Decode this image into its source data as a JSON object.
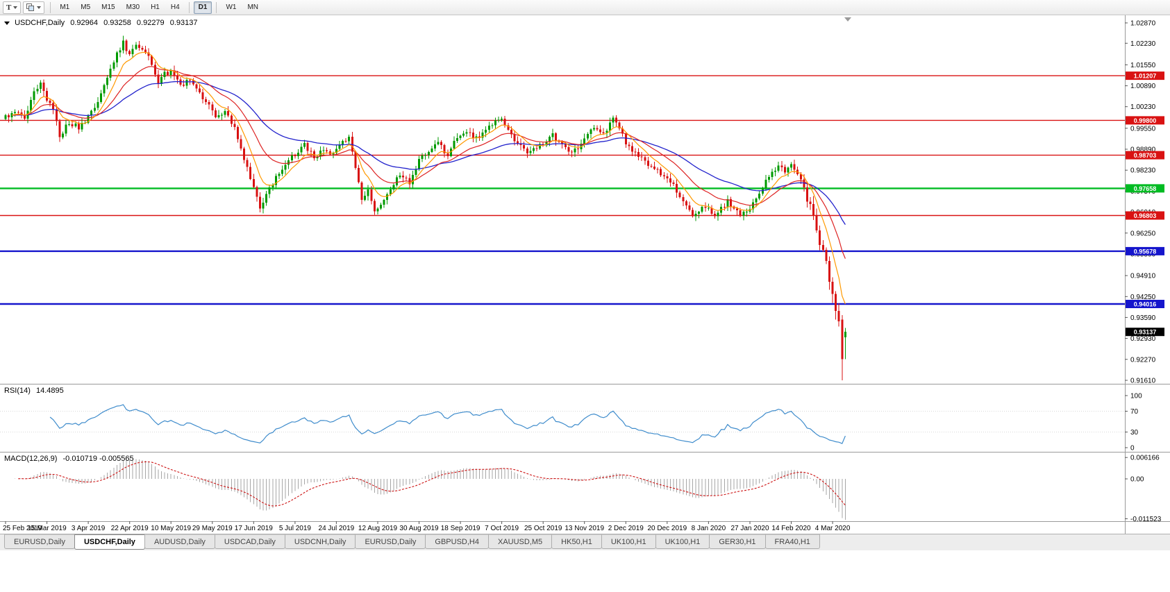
{
  "toolbar": {
    "pointer_button": {
      "label": "T"
    },
    "timeframes": [
      "M1",
      "M5",
      "M15",
      "M30",
      "H1",
      "H4",
      "D1",
      "W1",
      "MN"
    ],
    "active_timeframe": "D1"
  },
  "chart": {
    "header": {
      "symbol": "USDCHF,Daily",
      "open": "0.92964",
      "high": "0.93258",
      "low": "0.92279",
      "close": "0.93137"
    },
    "y_axis": [
      "1.02870",
      "1.02230",
      "1.01550",
      "1.00890",
      "1.00230",
      "0.99550",
      "0.98890",
      "0.98230",
      "0.97570",
      "0.96910",
      "0.96250",
      "0.95590",
      "0.94910",
      "0.94250",
      "0.93590",
      "0.92930",
      "0.92270",
      "0.91610"
    ],
    "x_axis": [
      "25 Feb 2019",
      "15 Mar 2019",
      "3 Apr 2019",
      "22 Apr 2019",
      "10 May 2019",
      "29 May 2019",
      "17 Jun 2019",
      "5 Jul 2019",
      "24 Jul 2019",
      "12 Aug 2019",
      "30 Aug 2019",
      "18 Sep 2019",
      "7 Oct 2019",
      "25 Oct 2019",
      "13 Nov 2019",
      "2 Dec 2019",
      "20 Dec 2019",
      "8 Jan 2020",
      "27 Jan 2020",
      "14 Feb 2020",
      "4 Mar 2020"
    ],
    "levels": [
      {
        "label": "1.01207",
        "price": 1.01207,
        "color": "#d91212",
        "width": 1.4
      },
      {
        "label": "0.99800",
        "price": 0.998,
        "color": "#d91212",
        "width": 1.4
      },
      {
        "label": "0.98703",
        "price": 0.98703,
        "color": "#d91212",
        "width": 1.4
      },
      {
        "label": "0.97658",
        "price": 0.97658,
        "color": "#00bb22",
        "width": 2.4
      },
      {
        "label": "0.96803",
        "price": 0.96803,
        "color": "#d91212",
        "width": 1.4
      },
      {
        "label": "0.95678",
        "price": 0.95678,
        "color": "#1515cc",
        "width": 2.4
      },
      {
        "label": "0.94016",
        "price": 0.94016,
        "color": "#1515cc",
        "width": 2.4
      }
    ],
    "current_price": {
      "label": "0.93137",
      "price": 0.93137,
      "color": "#000000"
    }
  },
  "rsi": {
    "name": "RSI(14)",
    "value": "14.4895",
    "scale": [
      "100",
      "70",
      "30",
      "0"
    ],
    "levels": [
      70,
      30
    ],
    "color": "#3f8ccc"
  },
  "macd": {
    "name": "MACD(12,26,9)",
    "value": "-0.010719 -0.005565",
    "scale": [
      "0.006166",
      "0.00",
      "-0.011523"
    ],
    "hist_color": "#a6a6a6",
    "signal_color": "#cc1111"
  },
  "tabs": {
    "active_index": 1,
    "items": [
      "EURUSD,Daily",
      "USDCHF,Daily",
      "AUDUSD,Daily",
      "USDCAD,Daily",
      "USDCNH,Daily",
      "EURUSD,Daily",
      "GBPUSD,H4",
      "XAUUSD,M5",
      "HK50,H1",
      "UK100,H1",
      "UK100,H1",
      "GER30,H1",
      "FRA40,H1"
    ]
  },
  "chart_data": {
    "type": "candlestick",
    "symbol": "USDCHF",
    "timeframe": "Daily",
    "bar_count": 265,
    "y_range": [
      0.9161,
      1.0287
    ],
    "colors": {
      "up": "#009a00",
      "down": "#d81111",
      "ma_fast": "#ff9900",
      "ma_mid": "#dd2222",
      "ma_slow": "#2222cc"
    },
    "close_anchors": [
      [
        0,
        0.999
      ],
      [
        3,
        1.0012
      ],
      [
        6,
        0.9985
      ],
      [
        9,
        1.0068
      ],
      [
        11,
        1.0095
      ],
      [
        13,
        1.0045
      ],
      [
        15,
        1.0018
      ],
      [
        17,
        0.9928
      ],
      [
        20,
        0.9975
      ],
      [
        23,
        0.9958
      ],
      [
        26,
        0.9988
      ],
      [
        29,
        1.0042
      ],
      [
        32,
        1.0122
      ],
      [
        35,
        1.0192
      ],
      [
        37,
        1.0226
      ],
      [
        39,
        1.0185
      ],
      [
        41,
        1.0216
      ],
      [
        44,
        1.0196
      ],
      [
        46,
        1.0158
      ],
      [
        48,
        1.0098
      ],
      [
        50,
        1.0126
      ],
      [
        52,
        1.0136
      ],
      [
        55,
        1.0092
      ],
      [
        58,
        1.0106
      ],
      [
        61,
        1.0062
      ],
      [
        64,
        1.003
      ],
      [
        66,
        0.9996
      ],
      [
        69,
        1.001
      ],
      [
        72,
        0.9958
      ],
      [
        75,
        0.9862
      ],
      [
        78,
        0.9772
      ],
      [
        80,
        0.9706
      ],
      [
        82,
        0.9746
      ],
      [
        85,
        0.9802
      ],
      [
        88,
        0.9846
      ],
      [
        91,
        0.9872
      ],
      [
        94,
        0.9906
      ],
      [
        97,
        0.9862
      ],
      [
        100,
        0.9892
      ],
      [
        103,
        0.9872
      ],
      [
        106,
        0.9916
      ],
      [
        108,
        0.9926
      ],
      [
        110,
        0.9832
      ],
      [
        112,
        0.9736
      ],
      [
        114,
        0.9762
      ],
      [
        116,
        0.9688
      ],
      [
        118,
        0.9722
      ],
      [
        121,
        0.9766
      ],
      [
        124,
        0.9806
      ],
      [
        127,
        0.9786
      ],
      [
        130,
        0.9852
      ],
      [
        133,
        0.9886
      ],
      [
        136,
        0.9906
      ],
      [
        139,
        0.9872
      ],
      [
        142,
        0.9926
      ],
      [
        145,
        0.995
      ],
      [
        148,
        0.9922
      ],
      [
        151,
        0.9956
      ],
      [
        154,
        0.9976
      ],
      [
        156,
        0.9986
      ],
      [
        158,
        0.9946
      ],
      [
        161,
        0.9906
      ],
      [
        164,
        0.9876
      ],
      [
        167,
        0.9896
      ],
      [
        169,
        0.9906
      ],
      [
        172,
        0.9932
      ],
      [
        175,
        0.9902
      ],
      [
        178,
        0.9876
      ],
      [
        180,
        0.9896
      ],
      [
        182,
        0.9926
      ],
      [
        185,
        0.9952
      ],
      [
        188,
        0.9932
      ],
      [
        191,
        0.9986
      ],
      [
        193,
        0.9962
      ],
      [
        195,
        0.9906
      ],
      [
        198,
        0.9876
      ],
      [
        201,
        0.9846
      ],
      [
        204,
        0.9826
      ],
      [
        207,
        0.9806
      ],
      [
        210,
        0.9772
      ],
      [
        213,
        0.9726
      ],
      [
        216,
        0.9686
      ],
      [
        219,
        0.9706
      ],
      [
        221,
        0.97
      ],
      [
        223,
        0.9676
      ],
      [
        225,
        0.9702
      ],
      [
        227,
        0.9726
      ],
      [
        229,
        0.9702
      ],
      [
        231,
        0.9682
      ],
      [
        234,
        0.9696
      ],
      [
        237,
        0.9752
      ],
      [
        240,
        0.9802
      ],
      [
        243,
        0.9832
      ],
      [
        245,
        0.9822
      ],
      [
        247,
        0.9842
      ],
      [
        249,
        0.9812
      ],
      [
        251,
        0.9772
      ],
      [
        253,
        0.9702
      ],
      [
        255,
        0.9642
      ],
      [
        256,
        0.9602
      ],
      [
        257,
        0.9562
      ],
      [
        258,
        0.9532
      ],
      [
        259,
        0.9482
      ],
      [
        260,
        0.9422
      ],
      [
        261,
        0.9382
      ],
      [
        262,
        0.9352
      ],
      [
        263,
        0.9228
      ],
      [
        264,
        0.93137
      ]
    ],
    "final_candles": [
      {
        "o": 0.9352,
        "h": 0.9366,
        "l": 0.9161,
        "c": 0.9228
      },
      {
        "o": 0.92964,
        "h": 0.93258,
        "l": 0.92279,
        "c": 0.93137
      }
    ]
  }
}
